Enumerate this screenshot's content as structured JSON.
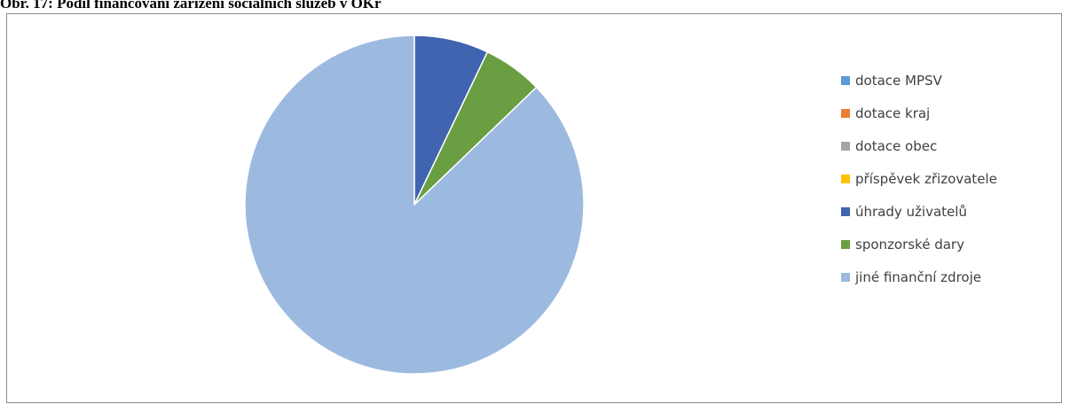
{
  "caption": "Obr. 17: Podíl financování zařízení sociálních služeb v OKř",
  "chart_data": {
    "type": "pie",
    "title": "",
    "slices": [
      {
        "label": "dotace MPSV",
        "value": 0,
        "color": "#5b9bd5"
      },
      {
        "label": "dotace kraj",
        "value": 0,
        "color": "#ed7d31"
      },
      {
        "label": "dotace obec",
        "value": 0,
        "color": "#a5a5a5"
      },
      {
        "label": "příspěvek zřizovatele",
        "value": 0,
        "color": "#ffc000"
      },
      {
        "label": "úhrady uživatelů",
        "value": 7.1,
        "color": "#4064af"
      },
      {
        "label": "sponzorské dary",
        "value": 5.7,
        "color": "#6a9e42"
      },
      {
        "label": "jiné finanční zdroje",
        "value": 87.2,
        "color": "#9cbae0"
      }
    ],
    "legend_position": "right",
    "start_angle": "top",
    "direction": "clockwise"
  }
}
